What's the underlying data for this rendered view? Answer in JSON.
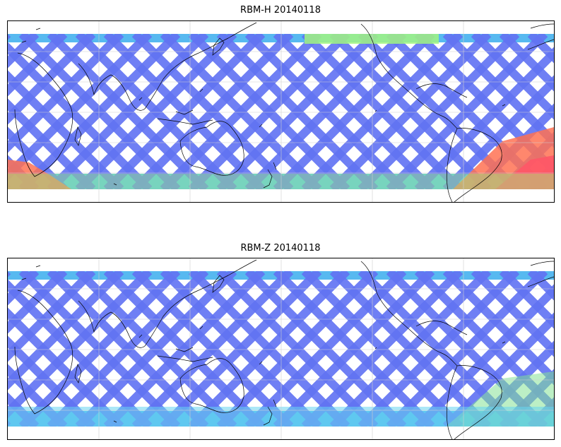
{
  "panels": [
    {
      "title": "RBM-H 20140118",
      "colormap": "jet",
      "swath_colors": {
        "typical": "#5a6cf2",
        "elevated": "#4fb6f0",
        "high_north": "#9cf47a",
        "high_south": "#ff6a4a",
        "peak_south": "#ff4f5f"
      }
    },
    {
      "title": "RBM-Z 20140118",
      "colormap": "jet",
      "swath_colors": {
        "typical": "#5a6cf2",
        "elevated": "#4fb6f0",
        "high_north": "#9cf47a",
        "high_south": "#7ee08f",
        "peak_south": "#5fd3f0"
      }
    }
  ],
  "map": {
    "projection": "PlateCarree",
    "gridlines": true,
    "coastlines": true,
    "colors": {
      "background": "#ffffff",
      "coastline": "#000000",
      "gridline": "#cccccc"
    }
  }
}
